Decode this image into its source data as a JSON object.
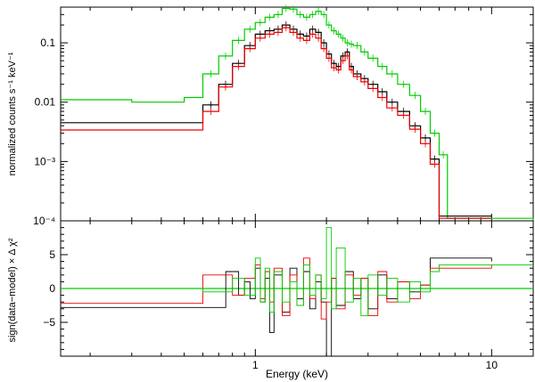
{
  "chart_data": [
    {
      "type": "line",
      "panel": "top",
      "ylabel": "normalized counts s⁻¹ keV⁻¹",
      "xscale": "log",
      "yscale": "log",
      "xlim": [
        0.15,
        15
      ],
      "ylim": [
        0.0001,
        0.4
      ],
      "ytick_labels": [
        "0.1",
        "0.01",
        "10⁻³",
        "10⁻⁴"
      ],
      "series": [
        {
          "color": "#00cc00",
          "x": [
            0.15,
            0.3,
            0.5,
            0.6,
            0.7,
            0.8,
            0.9,
            1.0,
            1.1,
            1.2,
            1.3,
            1.4,
            1.5,
            1.6,
            1.7,
            1.8,
            1.9,
            2.0,
            2.1,
            2.2,
            2.3,
            2.4,
            2.5,
            2.6,
            2.8,
            3.0,
            3.3,
            3.6,
            4.0,
            4.5,
            5.0,
            5.5,
            6.0,
            6.5,
            10,
            15
          ],
          "y": [
            0.011,
            0.01,
            0.012,
            0.03,
            0.06,
            0.11,
            0.17,
            0.22,
            0.27,
            0.3,
            0.38,
            0.37,
            0.3,
            0.27,
            0.3,
            0.34,
            0.3,
            0.2,
            0.16,
            0.14,
            0.12,
            0.1,
            0.095,
            0.09,
            0.07,
            0.055,
            0.04,
            0.03,
            0.02,
            0.013,
            0.007,
            0.003,
            0.0013,
            0.00011,
            0.00011,
            0.0001
          ]
        },
        {
          "color": "#000000",
          "x": [
            0.15,
            0.3,
            0.5,
            0.6,
            0.7,
            0.8,
            0.9,
            1.0,
            1.1,
            1.2,
            1.3,
            1.4,
            1.5,
            1.6,
            1.7,
            1.8,
            1.9,
            2.0,
            2.1,
            2.2,
            2.3,
            2.4,
            2.5,
            2.6,
            2.8,
            3.0,
            3.3,
            3.6,
            4.0,
            4.5,
            5.0,
            5.5,
            6.0,
            10
          ],
          "y": [
            0.0045,
            0.0045,
            0.0045,
            0.009,
            0.02,
            0.045,
            0.09,
            0.14,
            0.16,
            0.17,
            0.2,
            0.17,
            0.14,
            0.13,
            0.17,
            0.15,
            0.1,
            0.065,
            0.045,
            0.04,
            0.06,
            0.07,
            0.04,
            0.03,
            0.025,
            0.02,
            0.015,
            0.01,
            0.007,
            0.004,
            0.0025,
            0.0011,
            0.00012,
            0.00012
          ]
        },
        {
          "color": "#ee0000",
          "x": [
            0.15,
            0.3,
            0.5,
            0.6,
            0.7,
            0.8,
            0.9,
            1.0,
            1.1,
            1.2,
            1.3,
            1.4,
            1.5,
            1.6,
            1.7,
            1.8,
            1.9,
            2.0,
            2.1,
            2.2,
            2.3,
            2.4,
            2.5,
            2.6,
            2.8,
            3.0,
            3.3,
            3.6,
            4.0,
            4.5,
            5.0,
            5.5,
            6.0,
            10
          ],
          "y": [
            0.0034,
            0.0034,
            0.0034,
            0.007,
            0.018,
            0.04,
            0.08,
            0.12,
            0.14,
            0.15,
            0.18,
            0.15,
            0.12,
            0.11,
            0.14,
            0.12,
            0.08,
            0.055,
            0.038,
            0.035,
            0.05,
            0.06,
            0.035,
            0.027,
            0.022,
            0.017,
            0.012,
            0.008,
            0.006,
            0.0035,
            0.002,
            0.0009,
            0.00011,
            0.00011
          ]
        }
      ]
    },
    {
      "type": "line",
      "panel": "bottom",
      "ylabel": "sign(data−model) × Δ χ²",
      "xlabel": "Energy (keV)",
      "xscale": "log",
      "xlim": [
        0.15,
        15
      ],
      "ylim": [
        -10,
        10
      ],
      "ytick_labels": [
        "5",
        "0",
        "−5"
      ],
      "xtick_labels": [
        "1",
        "10"
      ],
      "zero_line_color": "#00cc00",
      "series": [
        {
          "color": "#000000",
          "x": [
            0.15,
            0.4,
            0.6,
            0.75,
            0.85,
            0.9,
            0.95,
            1.0,
            1.05,
            1.1,
            1.15,
            1.2,
            1.3,
            1.4,
            1.5,
            1.6,
            1.7,
            1.8,
            1.9,
            2.0,
            2.1,
            2.2,
            2.4,
            2.6,
            2.8,
            3.0,
            3.3,
            3.6,
            4.0,
            4.5,
            5.0,
            5.5,
            10
          ],
          "y": [
            -2.8,
            -2.8,
            -2.8,
            2.5,
            -1.0,
            1.0,
            -1.5,
            3.0,
            -2.0,
            1.5,
            -6.5,
            2.0,
            -3.5,
            3.0,
            -1.5,
            2.5,
            -3.0,
            1.0,
            -2.0,
            -10,
            1.5,
            -2.5,
            2.5,
            -1.5,
            1.5,
            -3.0,
            2.0,
            -1.5,
            1.0,
            -0.5,
            0.5,
            4.5,
            4.0
          ]
        },
        {
          "color": "#ee0000",
          "x": [
            0.15,
            0.4,
            0.6,
            0.8,
            0.9,
            1.0,
            1.05,
            1.1,
            1.15,
            1.2,
            1.3,
            1.4,
            1.5,
            1.6,
            1.7,
            1.8,
            1.9,
            2.0,
            2.1,
            2.2,
            2.4,
            2.6,
            2.8,
            3.0,
            3.3,
            3.6,
            4.0,
            4.5,
            5.0,
            5.5,
            10
          ],
          "y": [
            -2.2,
            -2.2,
            2.0,
            -1.0,
            1.5,
            3.5,
            -1.5,
            2.5,
            -2.0,
            3.0,
            -4.0,
            2.0,
            -2.5,
            4.5,
            -1.5,
            2.0,
            -4.5,
            -2.0,
            1.5,
            -3.0,
            2.0,
            -1.0,
            1.5,
            -4.0,
            2.5,
            -2.0,
            1.0,
            -1.5,
            0.5,
            3.0,
            3.5
          ]
        },
        {
          "color": "#00cc00",
          "x": [
            0.15,
            0.4,
            0.6,
            0.8,
            0.9,
            1.0,
            1.05,
            1.1,
            1.15,
            1.2,
            1.3,
            1.4,
            1.5,
            1.6,
            1.7,
            1.8,
            1.9,
            2.0,
            2.1,
            2.2,
            2.4,
            2.6,
            2.8,
            3.0,
            3.3,
            3.6,
            4.0,
            4.5,
            5.0,
            5.5,
            6.0,
            6.5,
            10,
            15
          ],
          "y": [
            0.0,
            0.0,
            -0.5,
            1.5,
            -1.0,
            4.5,
            -2.0,
            3.0,
            -3.5,
            2.5,
            -2.0,
            1.0,
            -2.5,
            3.5,
            -1.0,
            2.0,
            -1.5,
            9.0,
            -3.0,
            6.0,
            -2.0,
            1.5,
            -4.0,
            2.0,
            -1.0,
            1.5,
            -2.0,
            1.0,
            -0.5,
            2.5,
            3.5,
            3.5,
            3.5,
            3.5
          ]
        }
      ]
    }
  ]
}
